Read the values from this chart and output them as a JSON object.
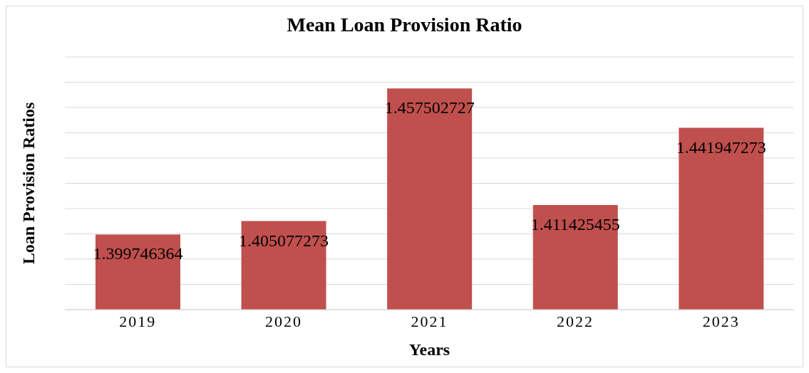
{
  "chart_data": {
    "type": "bar",
    "title": "Mean Loan Provision Ratio",
    "xlabel": "Years",
    "ylabel": "Loan Provision Ratios",
    "categories": [
      "2019",
      "2020",
      "2021",
      "2022",
      "2023"
    ],
    "values": [
      1.399746364,
      1.405077273,
      1.457502727,
      1.411425455,
      1.441947273
    ],
    "color": "#c0504d",
    "ylim": [
      1.37,
      1.47
    ],
    "yticks": [
      {
        "value": 1.37,
        "label": null
      },
      {
        "value": 1.38,
        "label": null
      },
      {
        "value": 1.39,
        "label": null
      },
      {
        "value": 1.4,
        "label": null
      },
      {
        "value": 1.41,
        "label": null
      },
      {
        "value": 1.42,
        "label": null
      },
      {
        "value": 1.43,
        "label": null
      },
      {
        "value": 1.44,
        "label": null
      },
      {
        "value": 1.45,
        "label": null
      },
      {
        "value": 1.46,
        "label": null
      },
      {
        "value": 1.47,
        "label": null
      }
    ],
    "tick_labels": "x",
    "grid": "y",
    "data_labels": true
  }
}
